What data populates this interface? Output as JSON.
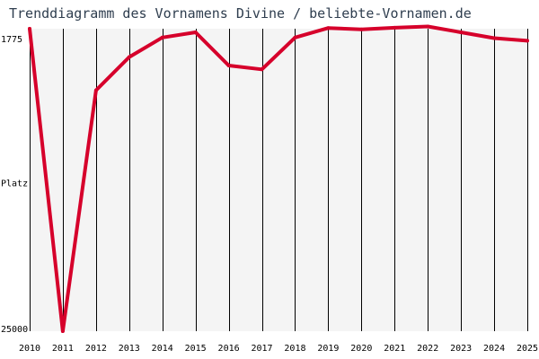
{
  "title": "Trenddiagramm des Vornamens Divine / beliebte-Vornamen.de",
  "colors": {
    "line": "#d6002b",
    "grid": "#000000",
    "plot_background": "#f4f4f4",
    "text": "#2f3e4f"
  },
  "chart_data": {
    "type": "line",
    "title": "Trenddiagramm des Vornamens Divine / beliebte-Vornamen.de",
    "ylabel": "Platz",
    "xlabel": "",
    "y_axis_inverted": true,
    "ylim": [
      1775,
      25000
    ],
    "y_tick_labels": [
      "1775",
      "Platz",
      "25000"
    ],
    "grid": "vertical lines at each year",
    "categories": [
      "2010",
      "2011",
      "2012",
      "2013",
      "2014",
      "2015",
      "2016",
      "2017",
      "2018",
      "2019",
      "2020",
      "2021",
      "2022",
      "2023",
      "2024",
      "2025"
    ],
    "series": [
      {
        "values": [
          1775,
          25000,
          6500,
          3950,
          2450,
          2050,
          4600,
          4900,
          2450,
          1720,
          1830,
          1700,
          1600,
          2050,
          2500,
          2700
        ]
      }
    ]
  }
}
